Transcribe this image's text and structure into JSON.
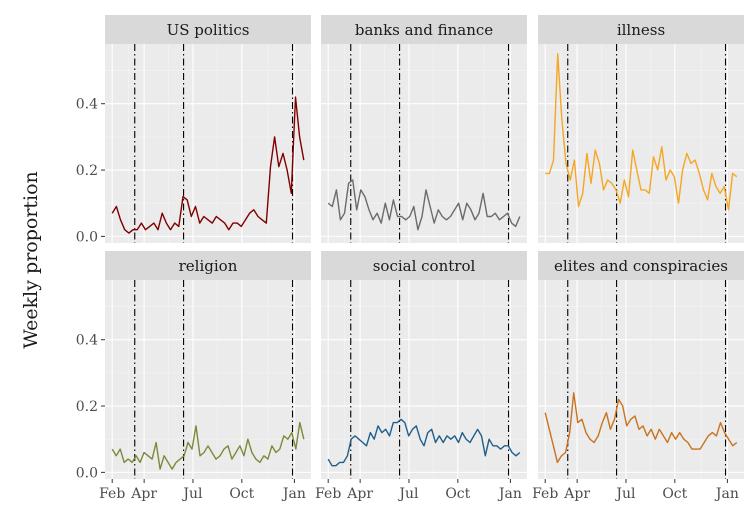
{
  "chart_data": {
    "type": "line",
    "ylabel": "Weekly proportion",
    "xlabel": "",
    "x_tick_labels": [
      "Feb",
      "Apr",
      "Jul",
      "Oct",
      "Jan"
    ],
    "y_tick_labels": [
      "0.0",
      "0.2",
      "0.4"
    ],
    "ylim": [
      -0.02,
      0.58
    ],
    "grid": true,
    "event_lines_weeks": [
      6,
      19,
      48
    ],
    "facets": [
      {
        "name": "US politics",
        "color": "#7f0000",
        "values": [
          0.07,
          0.09,
          0.05,
          0.02,
          0.01,
          0.02,
          0.02,
          0.04,
          0.02,
          0.03,
          0.04,
          0.02,
          0.07,
          0.04,
          0.02,
          0.04,
          0.03,
          0.12,
          0.11,
          0.06,
          0.09,
          0.04,
          0.06,
          0.05,
          0.04,
          0.06,
          0.05,
          0.04,
          0.02,
          0.04,
          0.04,
          0.03,
          0.05,
          0.07,
          0.08,
          0.06,
          0.05,
          0.04,
          0.21,
          0.3,
          0.21,
          0.25,
          0.2,
          0.13,
          0.42,
          0.3,
          0.23
        ]
      },
      {
        "name": "banks and finance",
        "color": "#6b6b6b",
        "values": [
          0.1,
          0.09,
          0.14,
          0.05,
          0.07,
          0.16,
          0.17,
          0.08,
          0.14,
          0.12,
          0.08,
          0.05,
          0.07,
          0.04,
          0.1,
          0.05,
          0.11,
          0.06,
          0.06,
          0.05,
          0.06,
          0.09,
          0.02,
          0.06,
          0.14,
          0.09,
          0.04,
          0.08,
          0.06,
          0.05,
          0.06,
          0.08,
          0.1,
          0.05,
          0.1,
          0.08,
          0.05,
          0.07,
          0.13,
          0.06,
          0.06,
          0.07,
          0.05,
          0.06,
          0.07,
          0.04,
          0.03,
          0.06
        ]
      },
      {
        "name": "illness",
        "color": "#f5a623",
        "values": [
          0.19,
          0.19,
          0.23,
          0.55,
          0.35,
          0.22,
          0.17,
          0.23,
          0.09,
          0.13,
          0.25,
          0.16,
          0.26,
          0.22,
          0.14,
          0.17,
          0.16,
          0.14,
          0.1,
          0.17,
          0.12,
          0.26,
          0.2,
          0.14,
          0.14,
          0.13,
          0.24,
          0.2,
          0.27,
          0.17,
          0.2,
          0.18,
          0.1,
          0.2,
          0.25,
          0.22,
          0.23,
          0.19,
          0.14,
          0.11,
          0.19,
          0.15,
          0.13,
          0.15,
          0.08,
          0.19,
          0.18
        ]
      },
      {
        "name": "religion",
        "color": "#7a8b3a",
        "values": [
          0.07,
          0.05,
          0.07,
          0.03,
          0.04,
          0.03,
          0.05,
          0.03,
          0.06,
          0.05,
          0.04,
          0.09,
          0.01,
          0.05,
          0.03,
          0.01,
          0.03,
          0.04,
          0.05,
          0.09,
          0.07,
          0.14,
          0.05,
          0.06,
          0.08,
          0.06,
          0.04,
          0.05,
          0.07,
          0.08,
          0.04,
          0.06,
          0.08,
          0.05,
          0.1,
          0.06,
          0.04,
          0.03,
          0.05,
          0.04,
          0.08,
          0.06,
          0.07,
          0.11,
          0.1,
          0.12,
          0.07,
          0.15,
          0.1
        ]
      },
      {
        "name": "social control",
        "color": "#1f5f8b",
        "values": [
          0.04,
          0.02,
          0.02,
          0.03,
          0.03,
          0.05,
          0.1,
          0.11,
          0.1,
          0.09,
          0.08,
          0.12,
          0.1,
          0.14,
          0.12,
          0.13,
          0.11,
          0.15,
          0.15,
          0.16,
          0.15,
          0.11,
          0.13,
          0.14,
          0.1,
          0.08,
          0.12,
          0.13,
          0.09,
          0.11,
          0.09,
          0.11,
          0.1,
          0.11,
          0.09,
          0.12,
          0.1,
          0.09,
          0.11,
          0.13,
          0.11,
          0.05,
          0.1,
          0.08,
          0.08,
          0.07,
          0.08,
          0.08,
          0.06,
          0.05,
          0.06
        ]
      },
      {
        "name": "elites and conspiracies",
        "color": "#c8731e",
        "values": [
          0.18,
          0.13,
          0.08,
          0.03,
          0.05,
          0.06,
          0.12,
          0.24,
          0.15,
          0.16,
          0.12,
          0.1,
          0.09,
          0.11,
          0.15,
          0.18,
          0.13,
          0.16,
          0.22,
          0.2,
          0.14,
          0.16,
          0.17,
          0.13,
          0.14,
          0.11,
          0.13,
          0.1,
          0.13,
          0.11,
          0.09,
          0.12,
          0.1,
          0.12,
          0.1,
          0.09,
          0.07,
          0.07,
          0.07,
          0.09,
          0.11,
          0.12,
          0.11,
          0.15,
          0.12,
          0.1,
          0.08,
          0.09
        ]
      }
    ]
  }
}
